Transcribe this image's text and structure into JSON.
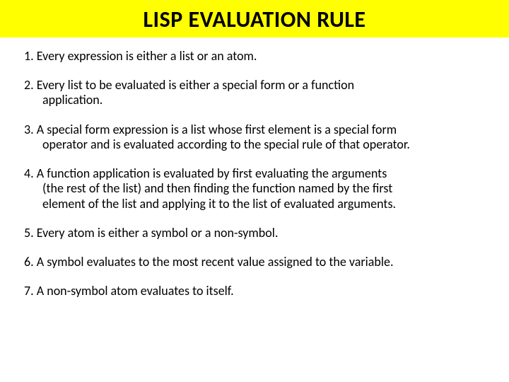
{
  "title": "LISP EVALUATION RULE",
  "title_bg": "#ffff00",
  "title_color": "#000000",
  "title_fontsize": 32,
  "body_fontsize": 18,
  "page_bg": "#ffffff",
  "rules": [
    {
      "n": "1.",
      "first": "Every expression is either a list or an atom.",
      "rest": []
    },
    {
      "n": "2.",
      "first": "Every list to be evaluated is either a special form or a function",
      "rest": [
        "application."
      ]
    },
    {
      "n": "3.",
      "first": "A special form expression is a list whose first element is a special form",
      "rest": [
        "operator and is evaluated according to the special rule of that operator."
      ]
    },
    {
      "n": "4.",
      "first": "A function application is evaluated by first evaluating the arguments",
      "rest": [
        "(the rest of the list) and then finding the function named by the first",
        "element of the list and applying it to the list of evaluated arguments."
      ]
    },
    {
      "n": "5.",
      "first": "Every atom is either a symbol or a non-symbol.",
      "rest": []
    },
    {
      "n": "6.",
      "first": "A symbol evaluates to the most recent value assigned to the variable.",
      "rest": []
    },
    {
      "n": "7.",
      "first": "A non-symbol atom evaluates to itself.",
      "rest": []
    }
  ]
}
